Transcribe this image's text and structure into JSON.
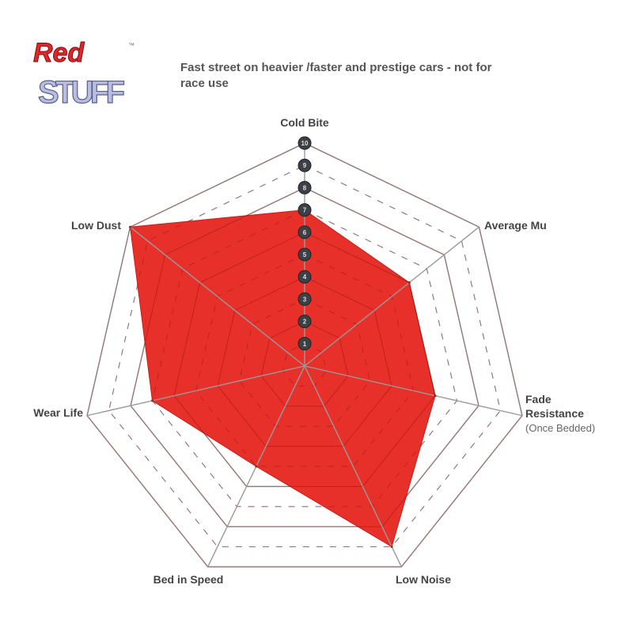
{
  "logo": {
    "text_line1": "Red",
    "text_line2": "STUFF",
    "trademark": "™"
  },
  "chart_data": {
    "type": "radar",
    "title": "Fast street on heavier /faster and prestige cars - not for race use",
    "axes": [
      {
        "label": "Cold Bite",
        "sublabel": ""
      },
      {
        "label": "Average Mu",
        "sublabel": ""
      },
      {
        "label": "Fade Resistance",
        "sublabel": "(Once Bedded)"
      },
      {
        "label": "Low Noise",
        "sublabel": ""
      },
      {
        "label": "Bed in Speed",
        "sublabel": ""
      },
      {
        "label": "Wear Life",
        "sublabel": ""
      },
      {
        "label": "Low Dust",
        "sublabel": ""
      }
    ],
    "values": [
      7,
      6,
      6,
      9,
      5,
      7,
      10
    ],
    "scale": {
      "min": 0,
      "max": 10,
      "tick_labels": [
        "1",
        "2",
        "3",
        "4",
        "5",
        "6",
        "7",
        "8",
        "9",
        "10"
      ]
    },
    "fill_color": "#e8302a",
    "grid": true
  }
}
